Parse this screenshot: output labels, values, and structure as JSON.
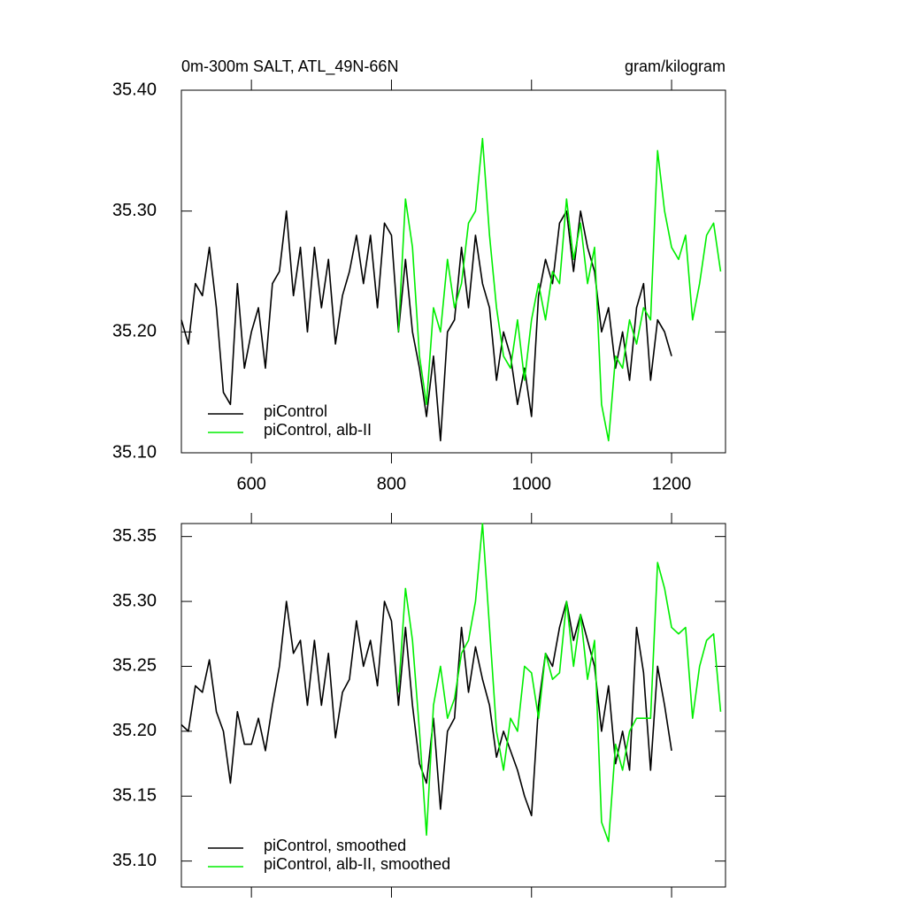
{
  "chart_data": [
    {
      "type": "line",
      "title": "0m-300m SALT, ATL_49N-66N",
      "units": "gram/kilogram",
      "xlim": [
        500,
        1277
      ],
      "xticks": [
        600,
        800,
        1000,
        1200
      ],
      "show_xtick_labels": true,
      "ylim": [
        35.1,
        35.4
      ],
      "yticks": [
        {
          "value": 35.1,
          "label": "35.10"
        },
        {
          "value": 35.2,
          "label": "35.20"
        },
        {
          "value": 35.3,
          "label": "35.30"
        },
        {
          "value": 35.4,
          "label": "35.40"
        }
      ],
      "legend": "lower left",
      "series": [
        {
          "name": "piControl",
          "color": "#000000",
          "x": [
            500,
            510,
            520,
            530,
            540,
            550,
            560,
            570,
            580,
            590,
            600,
            610,
            620,
            630,
            640,
            650,
            660,
            670,
            680,
            690,
            700,
            710,
            720,
            730,
            740,
            750,
            760,
            770,
            780,
            790,
            800,
            810,
            820,
            830,
            840,
            850,
            860,
            870,
            880,
            890,
            900,
            910,
            920,
            930,
            940,
            950,
            960,
            970,
            980,
            990,
            1000,
            1010,
            1020,
            1030,
            1040,
            1050,
            1060,
            1070,
            1080,
            1090,
            1100,
            1110,
            1120,
            1130,
            1140,
            1150,
            1160,
            1170,
            1180,
            1190,
            1200
          ],
          "values": [
            35.21,
            35.19,
            35.24,
            35.23,
            35.27,
            35.22,
            35.15,
            35.14,
            35.24,
            35.17,
            35.2,
            35.22,
            35.17,
            35.24,
            35.25,
            35.3,
            35.23,
            35.27,
            35.2,
            35.27,
            35.22,
            35.26,
            35.19,
            35.23,
            35.25,
            35.28,
            35.24,
            35.28,
            35.22,
            35.29,
            35.28,
            35.2,
            35.26,
            35.2,
            35.17,
            35.13,
            35.18,
            35.11,
            35.2,
            35.21,
            35.27,
            35.22,
            35.28,
            35.24,
            35.22,
            35.16,
            35.2,
            35.18,
            35.14,
            35.17,
            35.13,
            35.23,
            35.26,
            35.24,
            35.29,
            35.3,
            35.25,
            35.3,
            35.27,
            35.25,
            35.2,
            35.22,
            35.17,
            35.2,
            35.16,
            35.22,
            35.24,
            35.16,
            35.21,
            35.2,
            35.18
          ]
        },
        {
          "name": "piControl, alb-II",
          "color": "#00ee00",
          "x": [
            810,
            820,
            830,
            840,
            850,
            860,
            870,
            880,
            890,
            900,
            910,
            920,
            930,
            940,
            950,
            960,
            970,
            980,
            990,
            1000,
            1010,
            1020,
            1030,
            1040,
            1050,
            1060,
            1070,
            1080,
            1090,
            1100,
            1110,
            1120,
            1130,
            1140,
            1150,
            1160,
            1170,
            1180,
            1190,
            1200,
            1210,
            1220,
            1230,
            1240,
            1250,
            1260,
            1270
          ],
          "values": [
            35.2,
            35.31,
            35.27,
            35.18,
            35.14,
            35.22,
            35.2,
            35.26,
            35.22,
            35.24,
            35.29,
            35.3,
            35.36,
            35.28,
            35.22,
            35.18,
            35.17,
            35.21,
            35.16,
            35.21,
            35.24,
            35.21,
            35.25,
            35.24,
            35.31,
            35.26,
            35.29,
            35.24,
            35.27,
            35.14,
            35.11,
            35.18,
            35.17,
            35.21,
            35.19,
            35.22,
            35.21,
            35.35,
            35.3,
            35.27,
            35.26,
            35.28,
            35.21,
            35.24,
            35.28,
            35.29,
            35.25
          ]
        }
      ]
    },
    {
      "type": "line",
      "xlim": [
        500,
        1277
      ],
      "xticks": [
        600,
        800,
        1000,
        1200
      ],
      "show_xtick_labels": false,
      "ylim": [
        35.08,
        35.36
      ],
      "yticks": [
        {
          "value": 35.1,
          "label": "35.10"
        },
        35.15,
        {
          "value": 35.2,
          "label": "35.20"
        },
        35.25,
        {
          "value": 35.3,
          "label": "35.30"
        },
        35.35
      ],
      "legend": "lower left",
      "series": [
        {
          "name": "piControl, smoothed",
          "color": "#000000",
          "x": [
            500,
            510,
            520,
            530,
            540,
            550,
            560,
            570,
            580,
            590,
            600,
            610,
            620,
            630,
            640,
            650,
            660,
            670,
            680,
            690,
            700,
            710,
            720,
            730,
            740,
            750,
            760,
            770,
            780,
            790,
            800,
            810,
            820,
            830,
            840,
            850,
            860,
            870,
            880,
            890,
            900,
            910,
            920,
            930,
            940,
            950,
            960,
            970,
            980,
            990,
            1000,
            1010,
            1020,
            1030,
            1040,
            1050,
            1060,
            1070,
            1080,
            1090,
            1100,
            1110,
            1120,
            1130,
            1140,
            1150,
            1160,
            1170,
            1180,
            1190,
            1200
          ],
          "values": [
            35.205,
            35.2,
            35.235,
            35.23,
            35.255,
            35.215,
            35.2,
            35.16,
            35.215,
            35.19,
            35.19,
            35.21,
            35.185,
            35.22,
            35.25,
            35.3,
            35.26,
            35.27,
            35.22,
            35.27,
            35.22,
            35.26,
            35.195,
            35.23,
            35.24,
            35.285,
            35.25,
            35.27,
            35.235,
            35.3,
            35.285,
            35.22,
            35.28,
            35.22,
            35.175,
            35.16,
            35.21,
            35.14,
            35.2,
            35.21,
            35.28,
            35.23,
            35.265,
            35.24,
            35.22,
            35.18,
            35.2,
            35.185,
            35.17,
            35.15,
            35.135,
            35.22,
            35.26,
            35.25,
            35.28,
            35.3,
            35.27,
            35.29,
            35.27,
            35.25,
            35.2,
            35.235,
            35.175,
            35.2,
            35.17,
            35.28,
            35.245,
            35.17,
            35.25,
            35.22,
            35.185
          ]
        },
        {
          "name": "piControl, alb-II, smoothed",
          "color": "#00ee00",
          "x": [
            810,
            820,
            830,
            840,
            850,
            860,
            870,
            880,
            890,
            900,
            910,
            920,
            930,
            940,
            950,
            960,
            970,
            980,
            990,
            1000,
            1010,
            1020,
            1030,
            1040,
            1050,
            1060,
            1070,
            1080,
            1090,
            1100,
            1110,
            1120,
            1130,
            1140,
            1150,
            1160,
            1170,
            1180,
            1190,
            1200,
            1210,
            1220,
            1230,
            1240,
            1250,
            1260,
            1270
          ],
          "values": [
            35.23,
            35.31,
            35.27,
            35.2,
            35.12,
            35.22,
            35.25,
            35.21,
            35.225,
            35.26,
            35.27,
            35.3,
            35.36,
            35.28,
            35.2,
            35.17,
            35.21,
            35.2,
            35.25,
            35.245,
            35.21,
            35.26,
            35.24,
            35.245,
            35.3,
            35.25,
            35.29,
            35.24,
            35.27,
            35.13,
            35.115,
            35.19,
            35.17,
            35.2,
            35.21,
            35.21,
            35.21,
            35.33,
            35.31,
            35.28,
            35.275,
            35.28,
            35.21,
            35.25,
            35.27,
            35.275,
            35.215
          ]
        }
      ]
    }
  ]
}
